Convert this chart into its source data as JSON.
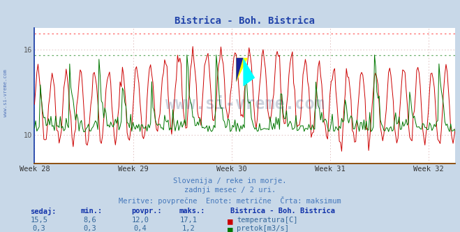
{
  "title": "Bistrica - Boh. Bistrica",
  "title_color": "#2244aa",
  "bg_color": "#c8d8e8",
  "plot_bg_color": "#ffffff",
  "grid_color": "#ddbbbb",
  "x_tick_labels": [
    "Week 28",
    "Week 29",
    "Week 30",
    "Week 31",
    "Week 32"
  ],
  "x_tick_positions": [
    0,
    84,
    168,
    252,
    336
  ],
  "temp_min": 8.0,
  "temp_max": 17.5,
  "flow_min": 0.0,
  "flow_max": 1.5,
  "yticks_temp": [
    10,
    16
  ],
  "max_temp_line": 17.1,
  "max_flow_line": 1.2,
  "temp_color": "#cc0000",
  "flow_color": "#007700",
  "left_border_color": "#2244aa",
  "bottom_border_color": "#884400",
  "footer_line1": "Slovenija / reke in morje.",
  "footer_line2": "zadnji mesec / 2 uri.",
  "footer_line3": "Meritve: povprečne  Enote: metrične  Črta: maksimum",
  "footer_color": "#4477bb",
  "table_label_color": "#1133aa",
  "table_value_color": "#336699",
  "legend_title": "Bistrica - Boh. Bistrica",
  "legend_title_color": "#1133aa",
  "sedaj_temp": 15.5,
  "min_temp": 8.6,
  "povpr_temp": 12.0,
  "maks_temp": 17.1,
  "sedaj_flow": 0.3,
  "min_flow": 0.3,
  "povpr_flow": 0.4,
  "maks_flow": 1.2,
  "n_points": 360,
  "watermark_text": "www.si-vreme.com",
  "watermark_color": "#1a3a6a",
  "watermark_alpha": 0.22
}
